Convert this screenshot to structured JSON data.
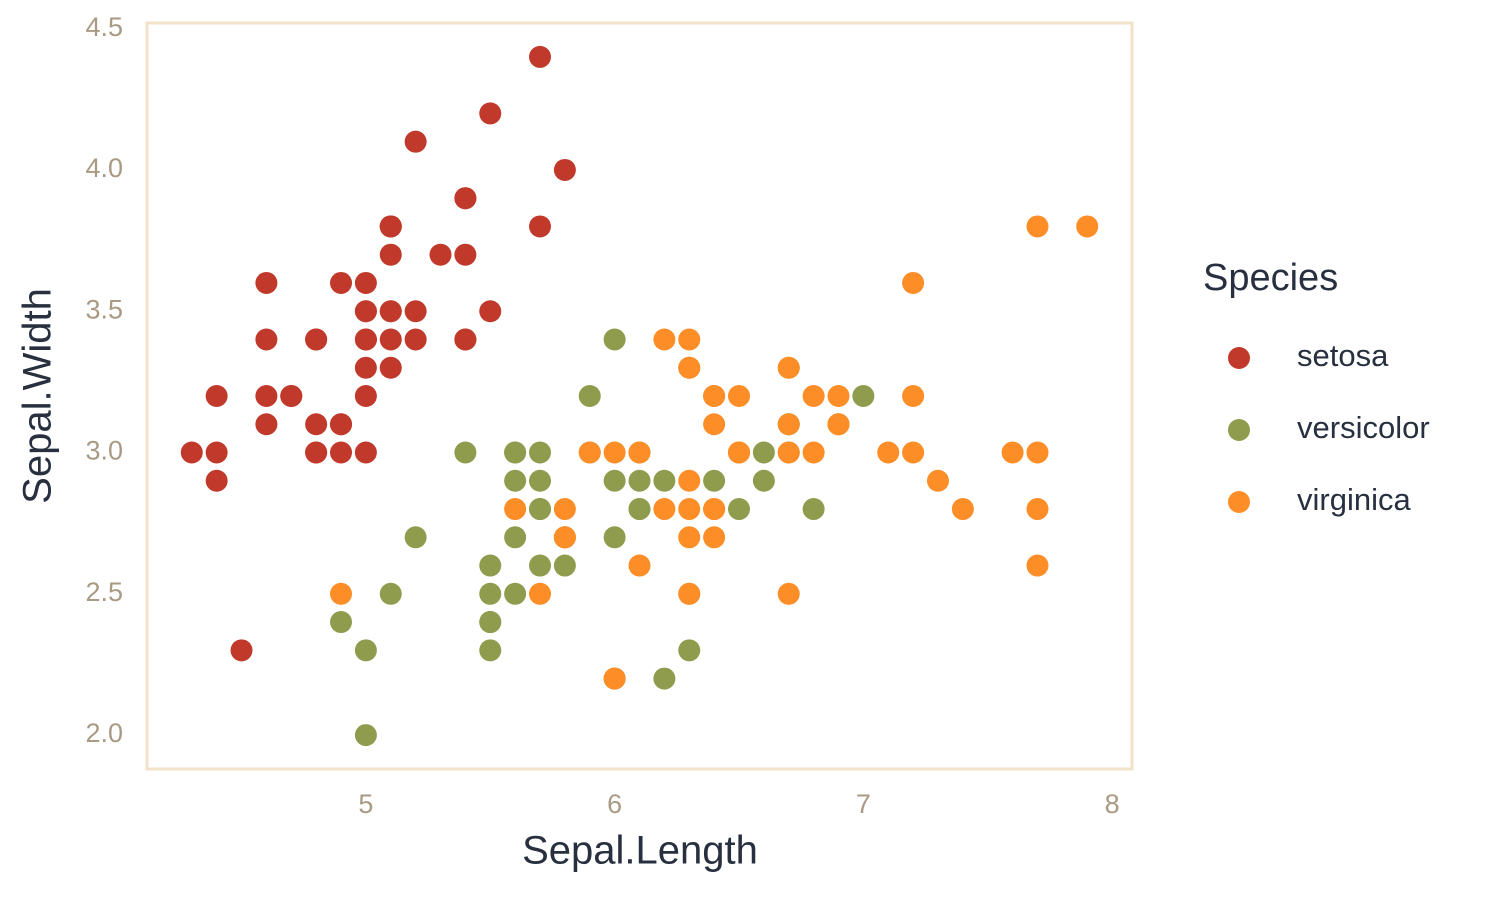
{
  "chart_data": {
    "type": "scatter",
    "x_label": "Sepal.Length",
    "y_label": "Sepal.Width",
    "legend_title": "Species",
    "legend_position": "right",
    "xlim": [
      4.12,
      8.08
    ],
    "ylim": [
      1.88,
      4.52
    ],
    "xticks": [
      5,
      6,
      7,
      8
    ],
    "yticks": [
      {
        "value": 2.0,
        "label": "2.0"
      },
      2.5,
      {
        "value": 3.0,
        "label": "3.0"
      },
      3.5,
      {
        "value": 4.0,
        "label": "4.0"
      },
      4.5
    ],
    "grid": false,
    "series": [
      {
        "name": "setosa",
        "color": "#c0392b",
        "x": [
          5.1,
          4.9,
          4.7,
          4.6,
          5.0,
          5.4,
          4.6,
          5.0,
          4.4,
          4.9,
          5.4,
          4.8,
          4.8,
          4.3,
          5.8,
          5.7,
          5.4,
          5.1,
          5.7,
          5.1,
          5.4,
          5.1,
          4.6,
          5.1,
          4.8,
          5.0,
          5.0,
          5.2,
          5.2,
          4.7,
          4.8,
          5.4,
          5.2,
          5.5,
          4.9,
          5.0,
          5.5,
          4.9,
          4.4,
          5.1,
          5.0,
          4.5,
          4.4,
          5.0,
          5.1,
          4.8,
          5.1,
          4.6,
          5.3,
          5.0
        ],
        "y": [
          3.5,
          3.0,
          3.2,
          3.1,
          3.6,
          3.9,
          3.4,
          3.4,
          2.9,
          3.1,
          3.7,
          3.4,
          3.0,
          3.0,
          4.0,
          4.4,
          3.9,
          3.5,
          3.8,
          3.8,
          3.4,
          3.7,
          3.6,
          3.3,
          3.4,
          3.0,
          3.4,
          3.5,
          3.4,
          3.2,
          3.1,
          3.4,
          4.1,
          4.2,
          3.1,
          3.2,
          3.5,
          3.6,
          3.0,
          3.4,
          3.5,
          2.3,
          3.2,
          3.5,
          3.8,
          3.0,
          3.8,
          3.2,
          3.7,
          3.3
        ]
      },
      {
        "name": "versicolor",
        "color": "#8f9c4d",
        "x": [
          7.0,
          6.4,
          6.9,
          5.5,
          6.5,
          5.7,
          6.3,
          4.9,
          6.6,
          5.2,
          5.0,
          5.9,
          6.0,
          6.1,
          5.6,
          6.7,
          5.6,
          5.8,
          6.2,
          5.6,
          5.9,
          6.1,
          6.3,
          6.1,
          6.4,
          6.6,
          6.8,
          6.7,
          6.0,
          5.7,
          5.5,
          5.5,
          5.8,
          6.0,
          5.4,
          6.0,
          6.7,
          6.3,
          5.6,
          5.5,
          5.5,
          6.1,
          5.8,
          5.0,
          5.6,
          5.7,
          5.7,
          6.2,
          5.1,
          5.7
        ],
        "y": [
          3.2,
          3.2,
          3.1,
          2.3,
          2.8,
          2.8,
          3.3,
          2.4,
          2.9,
          2.7,
          2.0,
          3.0,
          2.2,
          2.9,
          2.9,
          3.1,
          3.0,
          2.7,
          2.2,
          2.5,
          3.2,
          2.8,
          2.5,
          2.8,
          2.9,
          3.0,
          2.8,
          3.0,
          2.9,
          2.6,
          2.4,
          2.4,
          2.7,
          2.7,
          3.0,
          3.4,
          3.1,
          2.3,
          3.0,
          2.5,
          2.6,
          3.0,
          2.6,
          2.3,
          2.7,
          3.0,
          2.9,
          2.9,
          2.5,
          2.8
        ]
      },
      {
        "name": "virginica",
        "color": "#fd8d27",
        "x": [
          6.3,
          5.8,
          7.1,
          6.3,
          6.5,
          7.6,
          4.9,
          7.3,
          6.7,
          7.2,
          6.5,
          6.4,
          6.8,
          5.7,
          5.8,
          6.4,
          6.5,
          7.7,
          7.7,
          6.0,
          6.9,
          5.6,
          7.7,
          6.3,
          6.7,
          7.2,
          6.2,
          6.1,
          6.4,
          7.2,
          7.4,
          7.9,
          6.4,
          6.3,
          6.1,
          7.7,
          6.3,
          6.4,
          6.0,
          6.9,
          6.7,
          6.9,
          5.8,
          6.8,
          6.7,
          6.7,
          6.3,
          6.5,
          6.2,
          5.9
        ],
        "y": [
          3.3,
          2.7,
          3.0,
          2.9,
          3.0,
          3.0,
          2.5,
          2.9,
          2.5,
          3.6,
          3.2,
          2.7,
          3.0,
          2.5,
          2.8,
          3.2,
          3.0,
          3.8,
          2.6,
          2.2,
          3.2,
          2.8,
          2.8,
          2.7,
          3.3,
          3.2,
          2.8,
          3.0,
          2.8,
          3.0,
          2.8,
          3.8,
          2.8,
          2.8,
          2.6,
          3.0,
          3.4,
          3.1,
          3.0,
          3.1,
          3.1,
          3.1,
          2.7,
          3.2,
          3.3,
          3.0,
          2.5,
          3.0,
          3.4,
          3.0
        ]
      }
    ]
  }
}
